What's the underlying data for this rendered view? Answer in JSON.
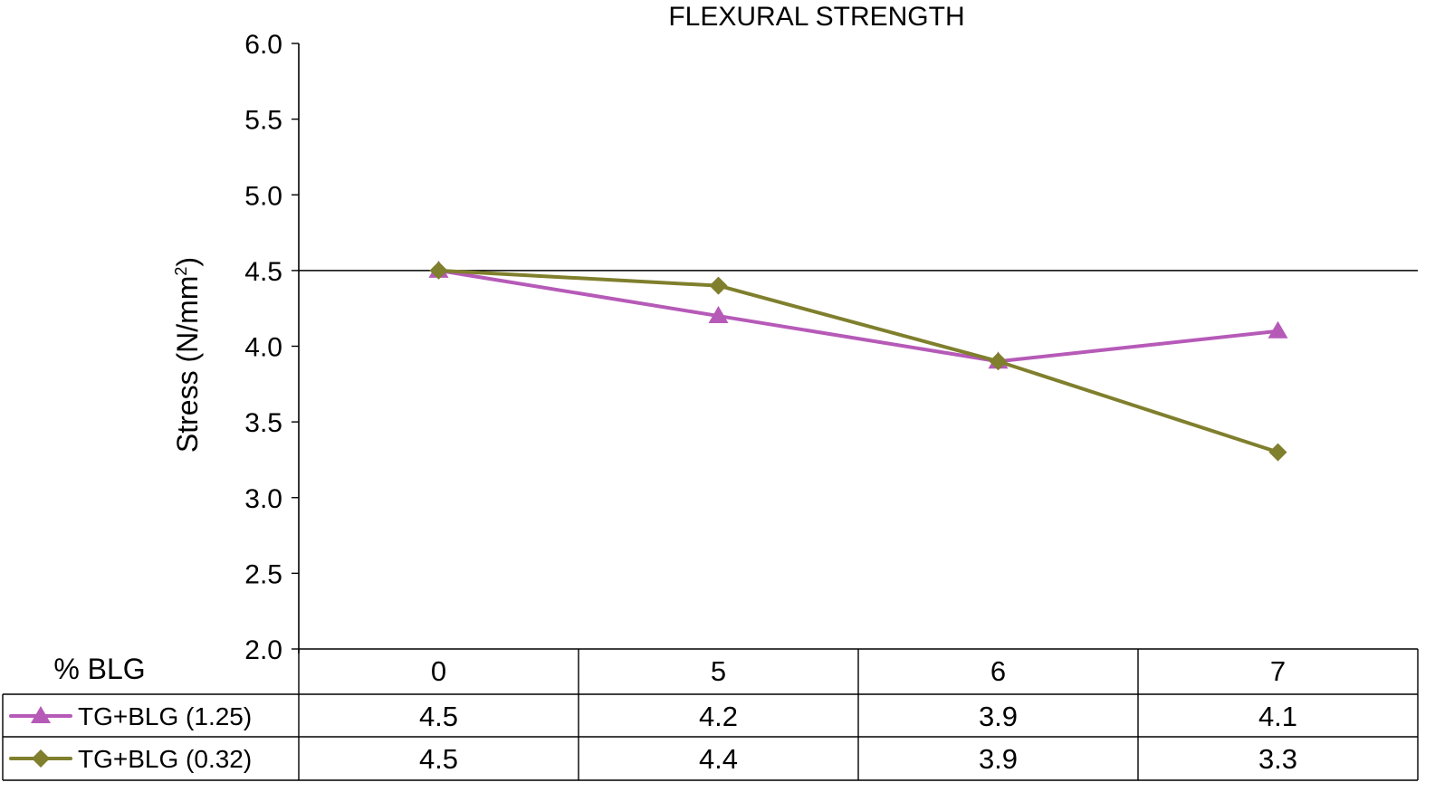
{
  "chart_data": {
    "type": "line",
    "title": "FLEXURAL STRENGTH",
    "ylabel_main": "Stress (N/mm",
    "ylabel_sup": "2",
    "ylabel_end": ")",
    "table_corner_label": "% BLG",
    "categories": [
      "0",
      "5",
      "6",
      "7"
    ],
    "ylim": [
      2.0,
      6.0
    ],
    "yticks": [
      "2.0",
      "2.5",
      "3.0",
      "3.5",
      "4.0",
      "4.5",
      "5.0",
      "5.5",
      "6.0"
    ],
    "reference_line": 4.5,
    "series": [
      {
        "name": "TG+BLG (1.25)",
        "values": [
          4.5,
          4.2,
          3.9,
          4.1
        ],
        "value_labels": [
          "4.5",
          "4.2",
          "3.9",
          "4.1"
        ],
        "marker": "triangle",
        "color": "#b65ab8"
      },
      {
        "name": "TG+BLG (0.32)",
        "values": [
          4.5,
          4.4,
          3.9,
          3.3
        ],
        "value_labels": [
          "4.5",
          "4.4",
          "3.9",
          "3.3"
        ],
        "marker": "diamond",
        "color": "#7f7f2d"
      }
    ]
  }
}
